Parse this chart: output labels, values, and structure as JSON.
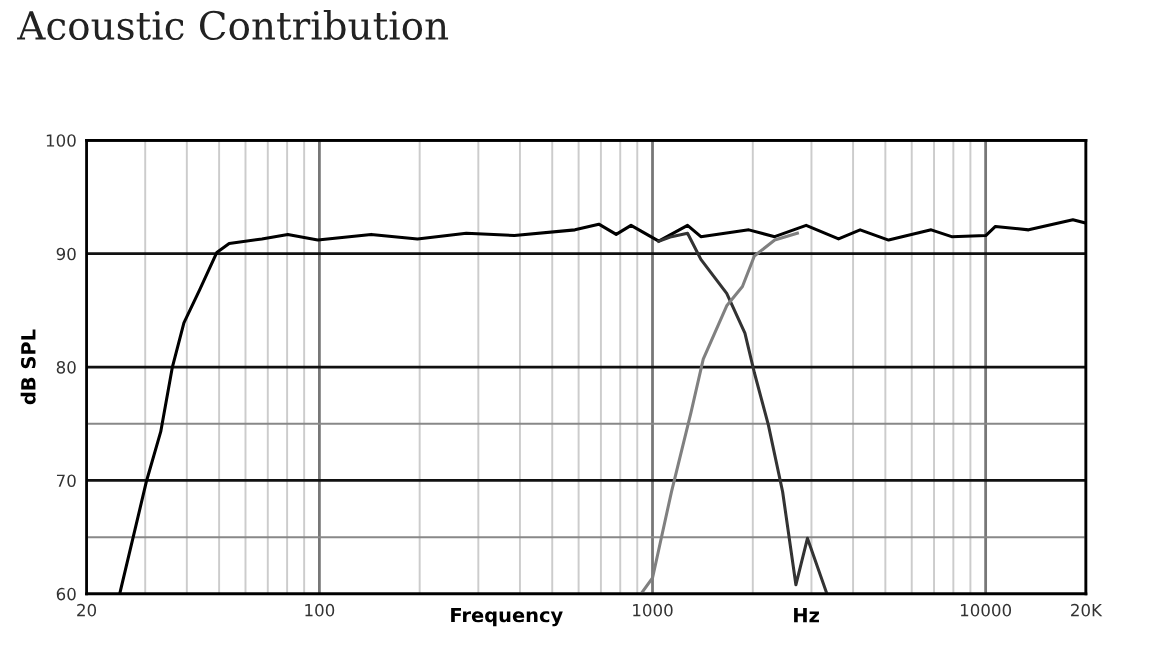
{
  "chart_data": {
    "type": "line",
    "title": "Acoustic Contribution",
    "xlabel": "Frequency",
    "ylabel": "dB SPL",
    "annotations": [
      "Hz"
    ],
    "log": "x",
    "grid": true,
    "marker": "none",
    "line_style": "solid",
    "xlim": [
      20,
      20000
    ],
    "ylim": [
      60,
      100
    ],
    "xticks": [
      20,
      {
        "value": 30,
        "label": null
      },
      {
        "value": 40,
        "label": null
      },
      {
        "value": 50,
        "label": null
      },
      {
        "value": 60,
        "label": null
      },
      {
        "value": 70,
        "label": null
      },
      {
        "value": 80,
        "label": null
      },
      {
        "value": 90,
        "label": null
      },
      100,
      {
        "value": 200,
        "label": null
      },
      {
        "value": 300,
        "label": null
      },
      {
        "value": 400,
        "label": null
      },
      {
        "value": 500,
        "label": null
      },
      {
        "value": 600,
        "label": null
      },
      {
        "value": 700,
        "label": null
      },
      {
        "value": 800,
        "label": null
      },
      {
        "value": 900,
        "label": null
      },
      1000,
      {
        "value": 2000,
        "label": null
      },
      {
        "value": 3000,
        "label": null
      },
      {
        "value": 4000,
        "label": null
      },
      {
        "value": 5000,
        "label": null
      },
      {
        "value": 6000,
        "label": null
      },
      {
        "value": 7000,
        "label": null
      },
      {
        "value": 8000,
        "label": null
      },
      {
        "value": 9000,
        "label": null
      },
      10000,
      {
        "value": 20000,
        "label": "20K"
      }
    ],
    "yticks": [
      60,
      {
        "value": 65,
        "label": null
      },
      70,
      {
        "value": 75,
        "label": null
      },
      80,
      90,
      100
    ],
    "series": [
      {
        "color": "#000000",
        "x": [
          25.2,
          30.3,
          33.4,
          36.2,
          39.2,
          43.7,
          49.2,
          53.6,
          67.2,
          80.4,
          98.9,
          143,
          197,
          276,
          385,
          585,
          690,
          778,
          862,
          1044,
          1274,
          1397,
          1946,
          2327,
          2892,
          3618,
          4200,
          5113,
          6864,
          7906,
          10010,
          10700,
          13460,
          18280,
          20000
        ],
        "values": [
          60.1,
          70,
          74.3,
          80,
          83.9,
          86.8,
          90.1,
          90.9,
          91.3,
          91.7,
          91.2,
          91.7,
          91.3,
          91.8,
          91.6,
          92.1,
          92.6,
          91.7,
          92.5,
          91.1,
          92.5,
          91.5,
          92.1,
          91.5,
          92.5,
          91.3,
          92.1,
          91.2,
          92.1,
          91.5,
          91.6,
          92.4,
          92.1,
          93,
          92.7
        ]
      },
      {
        "color": "#333333",
        "x": [
          1044,
          1140,
          1274,
          1397,
          1670,
          1894,
          2022,
          2227,
          2458,
          2694,
          2918,
          3330
        ],
        "values": [
          91.1,
          91.5,
          91.8,
          89.5,
          86.5,
          83,
          79.5,
          74.9,
          69,
          60.8,
          64.9,
          60.1
        ]
      },
      {
        "color": "#808080",
        "x": [
          929,
          1000,
          1140,
          1305,
          1420,
          1670,
          1862,
          2022,
          2327,
          2722
        ],
        "values": [
          60.1,
          61.4,
          69,
          76,
          80.7,
          85.4,
          87.1,
          89.8,
          91.2,
          91.8
        ]
      }
    ]
  }
}
